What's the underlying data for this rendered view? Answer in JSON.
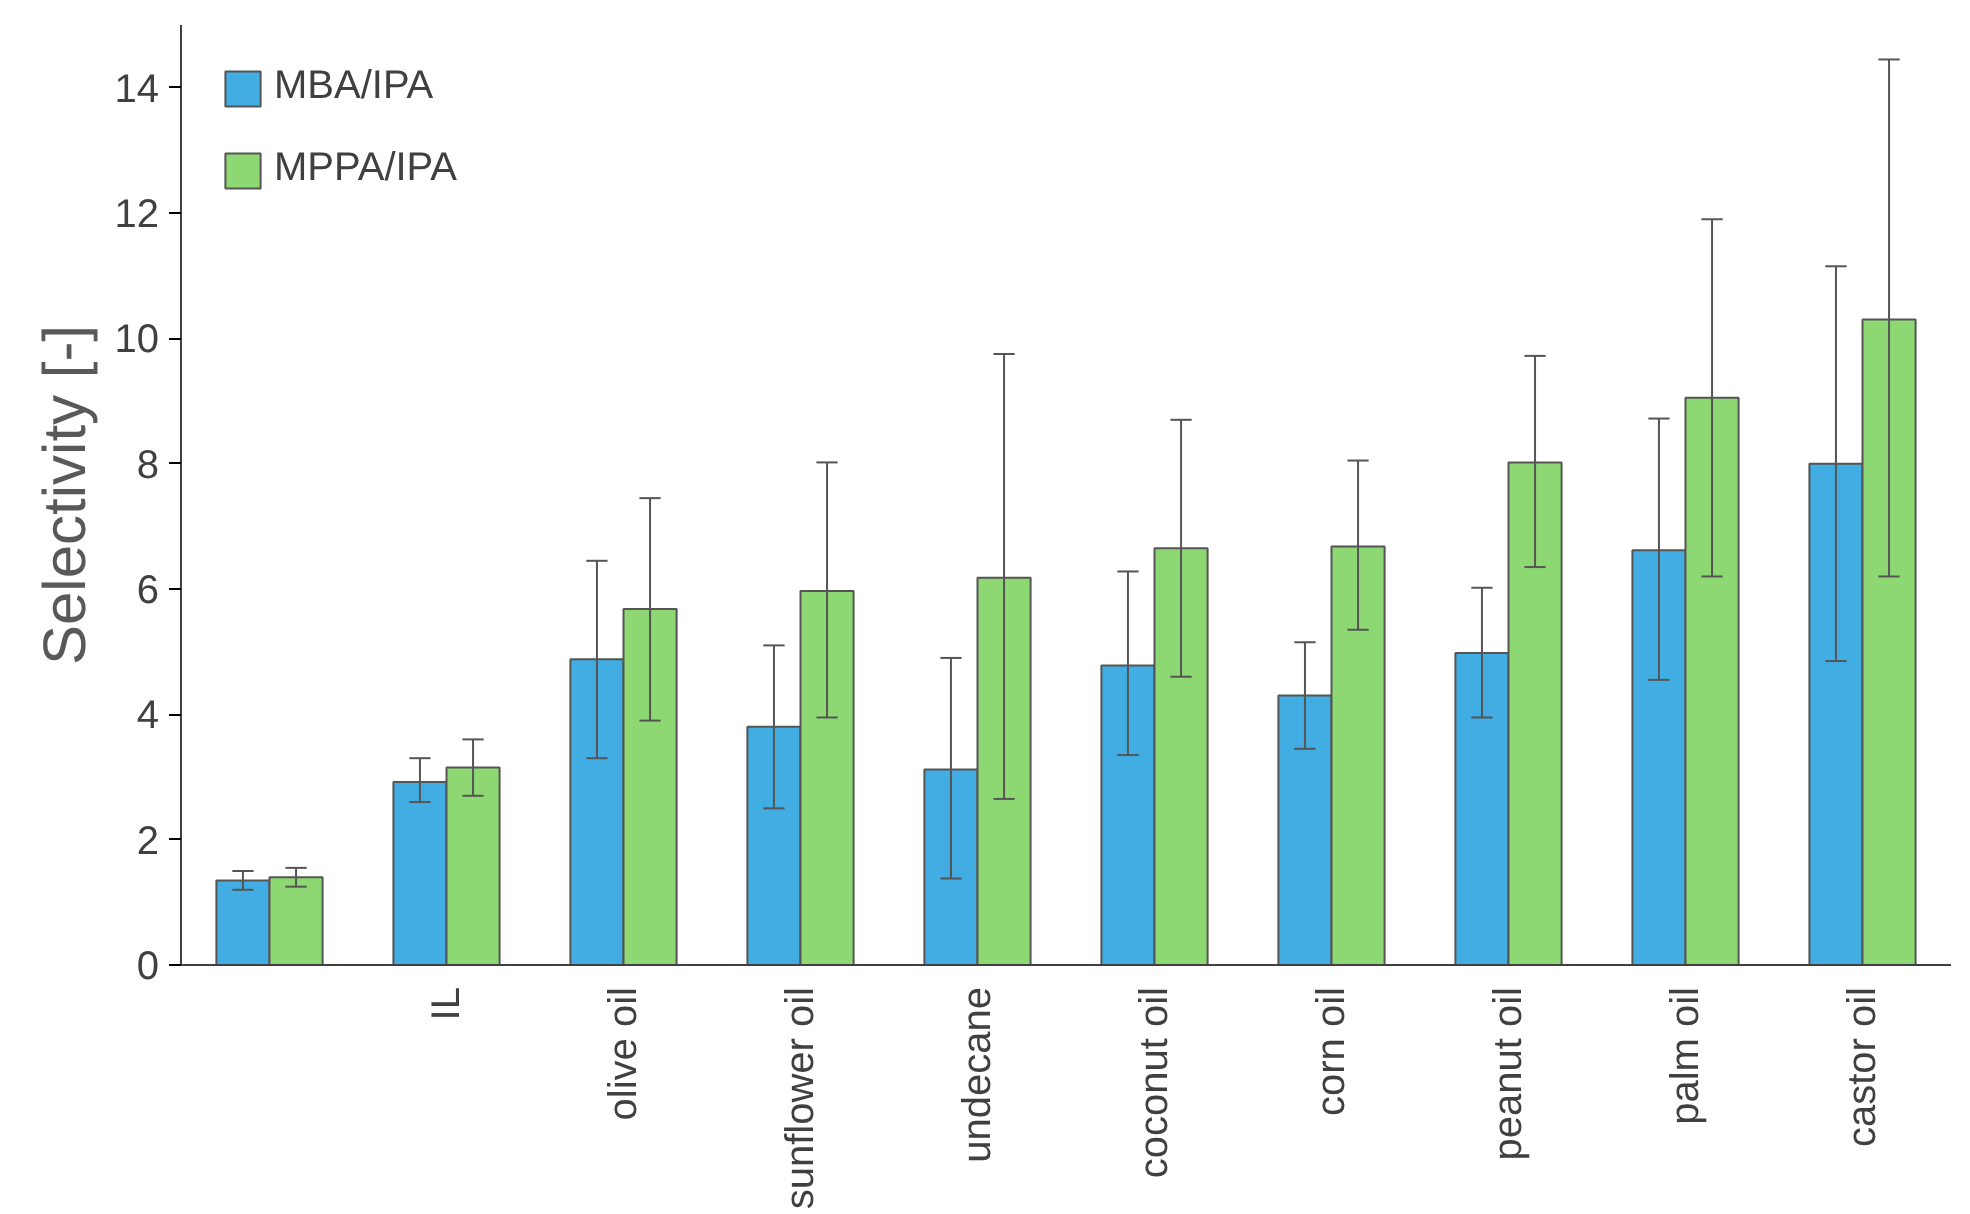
{
  "chart_data": {
    "type": "bar",
    "ylabel": "Selectivity [-]",
    "categories": [
      null,
      "IL",
      "olive oil",
      "sunflower oil",
      "undecane",
      "coconut oil",
      "corn oil",
      "peanut oil",
      "palm oil",
      "castor oil"
    ],
    "series": [
      {
        "name": "MBA/IPA",
        "color": "#41ade2",
        "values": [
          1.35,
          2.92,
          4.88,
          3.8,
          3.12,
          4.78,
          4.3,
          4.98,
          6.62,
          8.0
        ],
        "errors": [
          [
            1.2,
            1.5
          ],
          [
            2.6,
            3.3
          ],
          [
            3.3,
            6.45
          ],
          [
            2.5,
            5.1
          ],
          [
            1.38,
            4.9
          ],
          [
            3.35,
            6.28
          ],
          [
            3.45,
            5.15
          ],
          [
            3.95,
            6.02
          ],
          [
            4.55,
            8.72
          ],
          [
            4.85,
            11.15
          ]
        ]
      },
      {
        "name": "MPPA/IPA",
        "color": "#8ed873",
        "values": [
          1.4,
          3.15,
          5.68,
          5.97,
          6.18,
          6.65,
          6.68,
          8.02,
          9.05,
          10.3
        ],
        "errors": [
          [
            1.25,
            1.55
          ],
          [
            2.7,
            3.6
          ],
          [
            3.9,
            7.45
          ],
          [
            3.95,
            8.02
          ],
          [
            2.65,
            9.75
          ],
          [
            4.6,
            8.7
          ],
          [
            5.35,
            8.05
          ],
          [
            6.35,
            9.72
          ],
          [
            6.2,
            11.9
          ],
          [
            6.2,
            14.45
          ]
        ]
      }
    ],
    "ylim": [
      0,
      15
    ],
    "yticks": [
      0,
      2,
      4,
      6,
      8,
      10,
      12,
      14
    ],
    "grid": false,
    "legend": "top left"
  }
}
